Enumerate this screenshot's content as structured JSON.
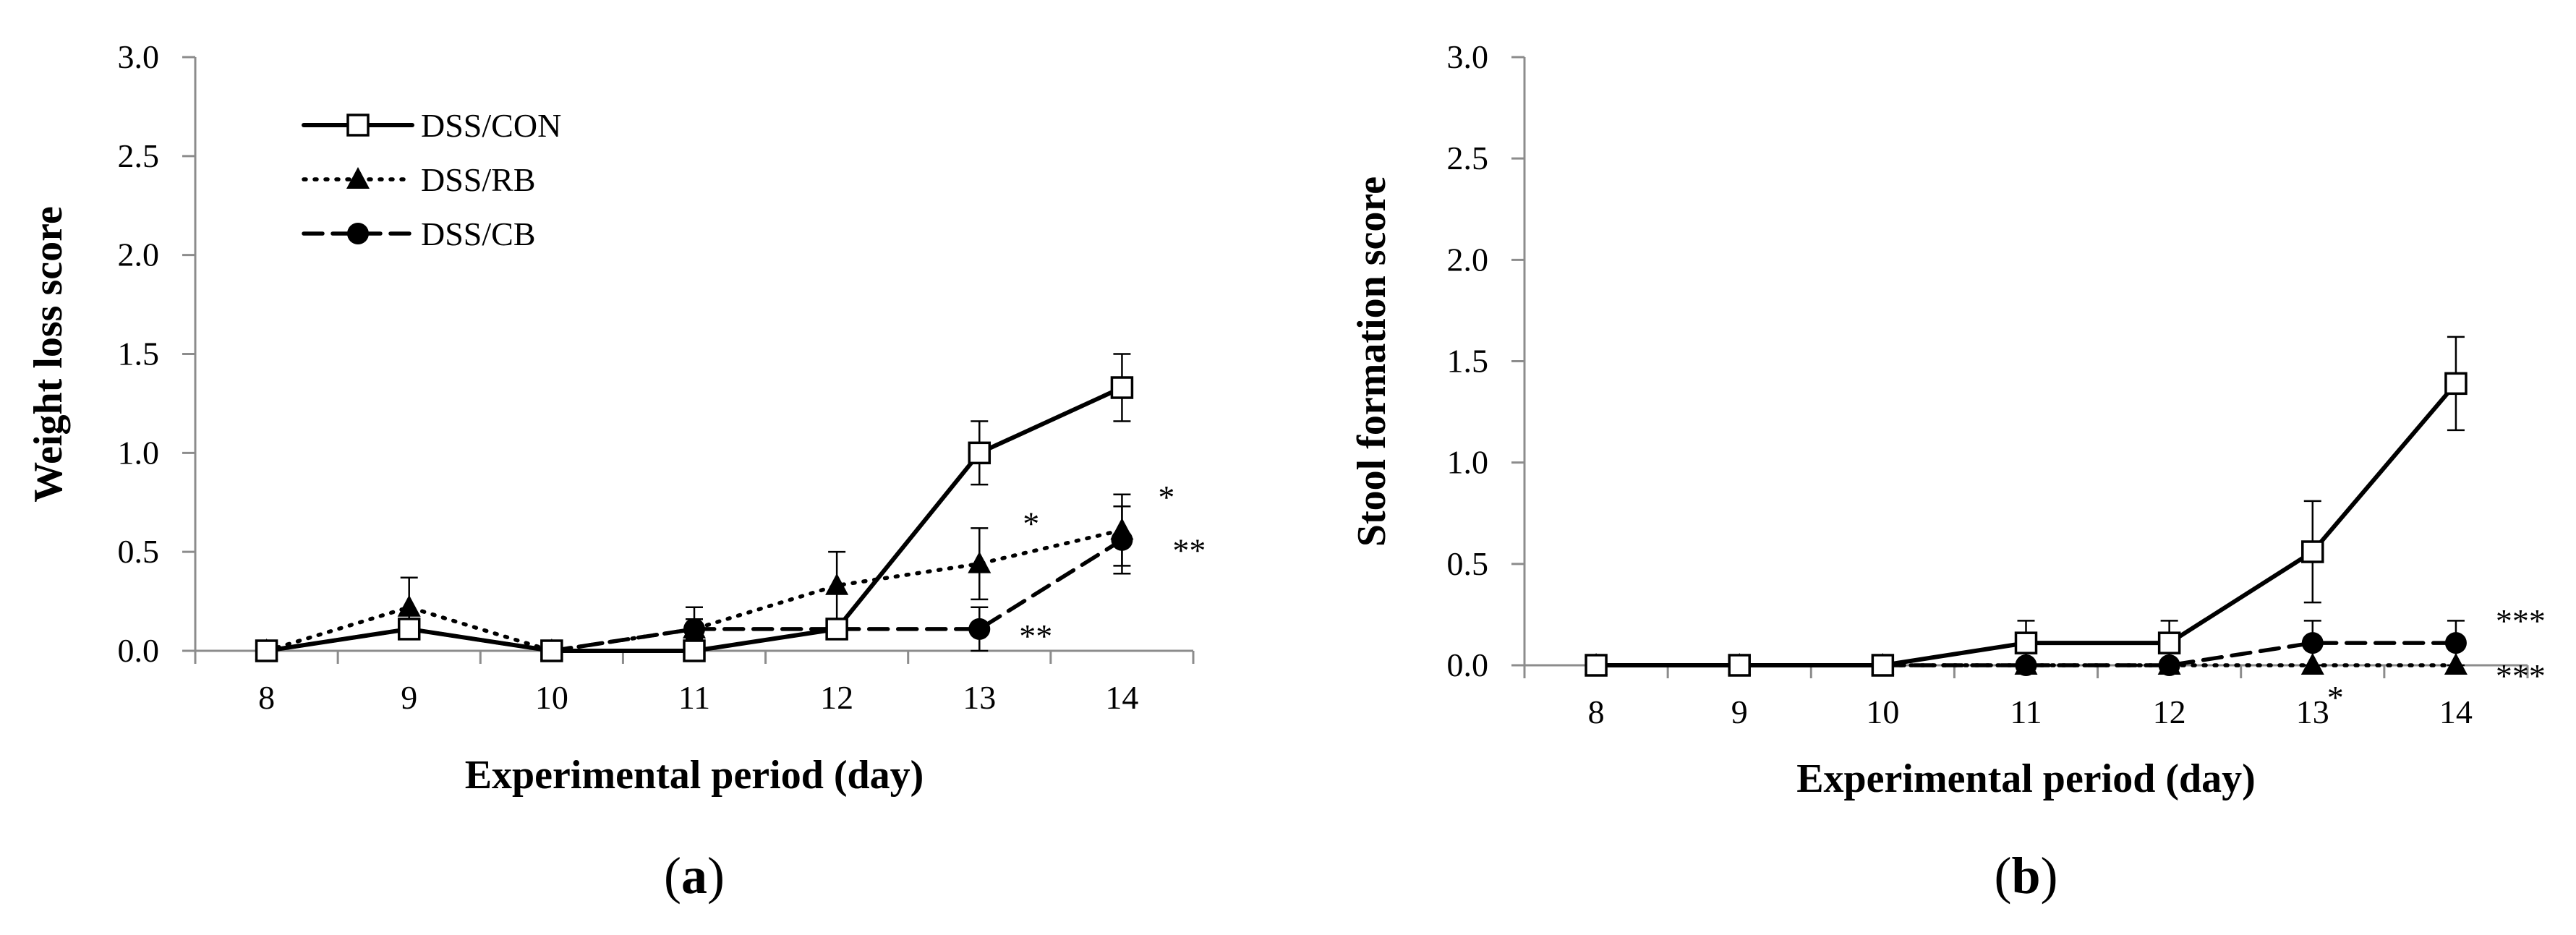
{
  "chart_data": [
    {
      "panel": "(a)",
      "panel_prefix": "(",
      "panel_letter": "a",
      "panel_suffix": ")",
      "type": "line",
      "title": "",
      "xlabel": "Experimental period (day)",
      "ylabel": "Weight loss score",
      "ylim": [
        0,
        3.0
      ],
      "yticks": [
        "0.0",
        "0.5",
        "1.0",
        "1.5",
        "2.0",
        "2.5",
        "3.0"
      ],
      "categories": [
        "8",
        "9",
        "10",
        "11",
        "12",
        "13",
        "14"
      ],
      "legend": "top-left",
      "series": [
        {
          "name": "DSS/CON",
          "style": "solid",
          "marker": "open-square",
          "values": [
            0,
            0.11,
            0,
            0,
            0.11,
            1.0,
            1.33
          ],
          "errors": [
            0,
            0.05,
            0,
            0,
            0.05,
            0.16,
            0.17
          ]
        },
        {
          "name": "DSS/RB",
          "style": "dotted",
          "marker": "triangle",
          "values": [
            0,
            0.22,
            0,
            0.11,
            0.33,
            0.44,
            0.61
          ],
          "errors": [
            0,
            0.15,
            0,
            0.11,
            0.17,
            0.18,
            0.18
          ]
        },
        {
          "name": "DSS/CB",
          "style": "dashed",
          "marker": "circle",
          "values": [
            0,
            0.11,
            0,
            0.11,
            0.11,
            0.11,
            0.56
          ],
          "errors": [
            0,
            0.05,
            0,
            0.05,
            0.05,
            0.11,
            0.17
          ]
        }
      ],
      "annotations": [
        {
          "text": "*",
          "series": "DSS/RB",
          "category": "13"
        },
        {
          "text": "*",
          "series": "DSS/RB",
          "category": "14"
        },
        {
          "text": "**",
          "series": "DSS/CB",
          "category": "14"
        },
        {
          "text": "**",
          "series": "DSS/CB",
          "category": "13"
        }
      ]
    },
    {
      "panel": "(b)",
      "panel_prefix": "(",
      "panel_letter": "b",
      "panel_suffix": ")",
      "type": "line",
      "title": "",
      "xlabel": "Experimental period (day)",
      "ylabel": "Stool formation score",
      "ylim": [
        0,
        3.0
      ],
      "yticks": [
        "0.0",
        "0.5",
        "1.0",
        "1.5",
        "2.0",
        "2.5",
        "3.0"
      ],
      "categories": [
        "8",
        "9",
        "10",
        "11",
        "12",
        "13",
        "14"
      ],
      "series": [
        {
          "name": "DSS/CON",
          "style": "solid",
          "marker": "open-square",
          "values": [
            0,
            0,
            0,
            0.11,
            0.11,
            0.56,
            1.39
          ],
          "errors": [
            0,
            0,
            0,
            0.11,
            0.11,
            0.25,
            0.23
          ]
        },
        {
          "name": "DSS/RB",
          "style": "dotted",
          "marker": "triangle",
          "values": [
            0,
            0,
            0,
            0,
            0,
            0,
            0
          ],
          "errors": [
            0,
            0,
            0,
            0,
            0,
            0,
            0
          ]
        },
        {
          "name": "DSS/CB",
          "style": "dashed",
          "marker": "circle",
          "values": [
            0,
            0,
            0,
            0,
            0,
            0.11,
            0.11
          ],
          "errors": [
            0,
            0,
            0,
            0,
            0,
            0.11,
            0.11
          ]
        }
      ],
      "annotations": [
        {
          "text": "***",
          "series": "DSS/CB",
          "category": "14"
        },
        {
          "text": "***",
          "series": "DSS/RB",
          "category": "14"
        },
        {
          "text": "*",
          "series": "DSS/RB",
          "category": "13"
        }
      ]
    }
  ]
}
